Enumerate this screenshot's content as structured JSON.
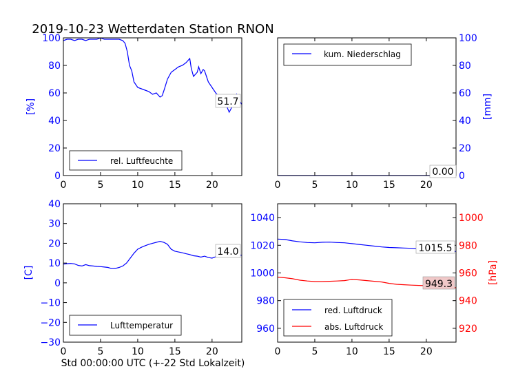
{
  "title": "2019-10-23 Wetterdaten Station RNON",
  "xlabel": "Std 00:00:00 UTC (+-22 Std Lokalzeit)",
  "colors": {
    "blue": "#0000ff",
    "red": "#ff0000",
    "black": "#000000",
    "value_box_bg": "#f0c8c8"
  },
  "chart_data": [
    {
      "id": "humidity",
      "type": "line",
      "xlim": [
        0,
        24
      ],
      "xticks": [
        "0",
        "5",
        "10",
        "15",
        "20"
      ],
      "ylim": [
        0,
        100
      ],
      "yticks": [
        "0",
        "20",
        "40",
        "60",
        "80",
        "100"
      ],
      "ylabel": "[%]",
      "yaxis_side": "left",
      "grid": false,
      "legend_position": "lower-left",
      "current_value": "51.7",
      "series": [
        {
          "name": "rel. Luftfeuchte",
          "color": "#0000ff",
          "x": [
            0,
            0.5,
            1,
            1.5,
            2,
            2.5,
            3,
            3.5,
            4,
            4.5,
            5,
            5.5,
            6,
            6.5,
            7,
            7.5,
            8,
            8.3,
            8.6,
            8.9,
            9.2,
            9.5,
            10,
            10.5,
            11,
            11.5,
            12,
            12.5,
            13,
            13.3,
            13.6,
            14,
            14.5,
            15,
            15.5,
            16,
            16.5,
            17,
            17.2,
            17.5,
            18,
            18.2,
            18.5,
            18.8,
            19,
            19.5,
            20,
            20.5,
            21,
            21.5,
            22,
            22.3,
            22.6,
            23,
            23.3,
            23.6,
            24
          ],
          "y": [
            98,
            99,
            99,
            98,
            99,
            99,
            98,
            99,
            99,
            99,
            100,
            99,
            99,
            99,
            99,
            99,
            98,
            96,
            90,
            80,
            76,
            68,
            64,
            63,
            62,
            61,
            59,
            60,
            57,
            58,
            63,
            70,
            75,
            77,
            79,
            80,
            82,
            85,
            78,
            72,
            75,
            79,
            74,
            77,
            76,
            68,
            64,
            60,
            57,
            55,
            50,
            46,
            49,
            55,
            59,
            55,
            51.7
          ]
        }
      ]
    },
    {
      "id": "precipitation",
      "type": "line",
      "xlim": [
        0,
        24
      ],
      "xticks": [
        "0",
        "5",
        "10",
        "15",
        "20"
      ],
      "ylim": [
        0,
        100
      ],
      "yticks": [
        "0",
        "20",
        "40",
        "60",
        "80",
        "100"
      ],
      "ylabel": "[mm]",
      "yaxis_side": "right",
      "grid": false,
      "legend_position": "upper-left",
      "current_value": "0.00",
      "series": [
        {
          "name": "kum. Niederschlag",
          "color": "#0000ff",
          "x": [
            0,
            24
          ],
          "y": [
            0,
            0
          ]
        }
      ]
    },
    {
      "id": "temperature",
      "type": "line",
      "xlim": [
        0,
        24
      ],
      "xticks": [
        "0",
        "5",
        "10",
        "15",
        "20"
      ],
      "ylim": [
        -30,
        40
      ],
      "yticks": [
        "−30",
        "−20",
        "−10",
        "0",
        "10",
        "20",
        "30",
        "40"
      ],
      "ylabel": "[C]",
      "yaxis_side": "left",
      "grid": false,
      "legend_position": "lower-left",
      "current_value": "14.0",
      "series": [
        {
          "name": "Lufttemperatur",
          "color": "#0000ff",
          "x": [
            0,
            0.5,
            1,
            1.5,
            2,
            2.5,
            3,
            3.5,
            4,
            4.5,
            5,
            5.5,
            6,
            6.5,
            7,
            7.5,
            8,
            8.5,
            9,
            9.5,
            10,
            10.5,
            11,
            11.5,
            12,
            12.5,
            13,
            13.5,
            14,
            14.5,
            15,
            15.5,
            16,
            16.5,
            17,
            17.5,
            18,
            18.5,
            19,
            19.5,
            20,
            20.5,
            21,
            21.5,
            22,
            22.5,
            23,
            23.5,
            24
          ],
          "y": [
            9.5,
            9.7,
            9.8,
            9.6,
            8.8,
            8.5,
            9.2,
            8.7,
            8.5,
            8.3,
            8.2,
            8.0,
            7.8,
            7.2,
            7.3,
            7.8,
            8.5,
            10,
            12.5,
            15,
            17,
            18,
            18.8,
            19.5,
            20,
            20.5,
            21,
            20.5,
            19.5,
            17,
            16,
            15.6,
            15.2,
            14.7,
            14.3,
            13.7,
            13.5,
            13,
            13.5,
            12.8,
            12.5,
            13.2,
            14,
            14.2,
            14,
            14.3,
            14.4,
            14.1,
            14.0
          ]
        }
      ]
    },
    {
      "id": "pressure",
      "type": "line",
      "xlim": [
        0,
        24
      ],
      "xticks": [
        "0",
        "5",
        "10",
        "15",
        "20"
      ],
      "ylim_left": [
        950,
        1050
      ],
      "yticks_left": [
        "960",
        "980",
        "1000",
        "1020",
        "1040"
      ],
      "ylim_right": [
        910,
        1010
      ],
      "yticks_right": [
        "920",
        "940",
        "960",
        "980",
        "1000"
      ],
      "ylabel_right": "[hPa]",
      "grid": false,
      "legend_position": "lower-left",
      "series": [
        {
          "name": "red. Luftdruck",
          "color": "#0000ff",
          "axis": "left",
          "current_value": "1015.5",
          "x": [
            0,
            1,
            2,
            3,
            4,
            5,
            6,
            7,
            8,
            9,
            10,
            11,
            12,
            13,
            14,
            15,
            16,
            17,
            18,
            19,
            20,
            21,
            22,
            23,
            24
          ],
          "y": [
            1024.5,
            1024.2,
            1023.2,
            1022.5,
            1022,
            1021.8,
            1022.2,
            1022.3,
            1022,
            1021.8,
            1021.2,
            1020.6,
            1020,
            1019.4,
            1018.8,
            1018.4,
            1018.2,
            1018,
            1017.8,
            1017.4,
            1017.2,
            1016.9,
            1016.5,
            1016,
            1015.5
          ]
        },
        {
          "name": "abs. Luftdruck",
          "color": "#ff0000",
          "axis": "right",
          "current_value": "949.3",
          "x": [
            0,
            1,
            2,
            3,
            4,
            5,
            6,
            7,
            8,
            9,
            10,
            11,
            12,
            13,
            14,
            15,
            16,
            17,
            18,
            19,
            20,
            21,
            22,
            23,
            24
          ],
          "y": [
            957,
            956.5,
            955.8,
            954.8,
            954.2,
            953.8,
            953.8,
            954,
            954.2,
            954.5,
            955.3,
            955,
            954.5,
            954,
            953.5,
            952.5,
            951.8,
            951.5,
            951.2,
            951,
            950.8,
            950.3,
            950,
            949.6,
            949.3
          ]
        }
      ]
    }
  ]
}
